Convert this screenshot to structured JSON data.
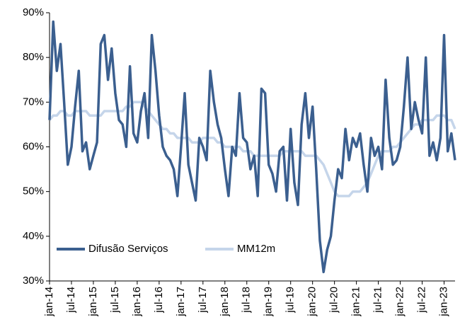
{
  "chart_data": {
    "type": "line",
    "categories": [
      "jan-14",
      null,
      null,
      null,
      null,
      null,
      "jul-14",
      null,
      null,
      null,
      null,
      null,
      "jan-15",
      null,
      null,
      null,
      null,
      null,
      "jul-15",
      null,
      null,
      null,
      null,
      null,
      "jan-16",
      null,
      null,
      null,
      null,
      null,
      "jul-16",
      null,
      null,
      null,
      null,
      null,
      "jan-17",
      null,
      null,
      null,
      null,
      null,
      "jul-17",
      null,
      null,
      null,
      null,
      null,
      "jan-18",
      null,
      null,
      null,
      null,
      null,
      "jul-18",
      null,
      null,
      null,
      null,
      null,
      "jan-19",
      null,
      null,
      null,
      null,
      null,
      "jul-19",
      null,
      null,
      null,
      null,
      null,
      "jan-20",
      null,
      null,
      null,
      null,
      null,
      "jul-20",
      null,
      null,
      null,
      null,
      null,
      "jan-21",
      null,
      null,
      null,
      null,
      null,
      "jul-21",
      null,
      null,
      null,
      null,
      null,
      "jan-22",
      null,
      null,
      null,
      null,
      null,
      "jul-22",
      null,
      null,
      null,
      null,
      null,
      "jan-23",
      null,
      null,
      null
    ],
    "series": [
      {
        "name": "Difusão Serviços",
        "color": "#3b5f8f",
        "values": [
          66,
          88,
          77,
          83,
          70,
          56,
          60,
          69,
          77,
          59,
          61,
          55,
          58,
          61,
          83,
          85,
          75,
          82,
          72,
          66,
          65,
          60,
          78,
          63,
          61,
          68,
          72,
          62,
          85,
          77,
          67,
          60,
          58,
          57,
          55,
          49,
          60,
          72,
          56,
          52,
          48,
          62,
          60,
          57,
          77,
          70,
          65,
          62,
          55,
          49,
          60,
          58,
          72,
          62,
          61,
          55,
          58,
          49,
          73,
          72,
          56,
          54,
          50,
          59,
          60,
          48,
          64,
          52,
          47,
          65,
          72,
          62,
          69,
          55,
          39,
          32,
          37,
          40,
          48,
          55,
          53,
          64,
          57,
          62,
          60,
          63,
          56,
          50,
          62,
          58,
          60,
          55,
          75,
          62,
          56,
          57,
          60,
          69,
          80,
          64,
          70,
          66,
          63,
          80,
          58,
          61,
          57,
          62,
          85,
          59,
          63,
          57
        ]
      },
      {
        "name": "MM12m",
        "color": "#c5d5ea",
        "values": [
          66,
          67,
          67,
          68,
          68,
          67,
          67,
          68,
          68,
          68,
          68,
          67,
          67,
          67,
          67,
          68,
          68,
          68,
          68,
          68,
          68,
          69,
          69,
          70,
          70,
          70,
          69,
          68,
          67,
          66,
          65,
          64,
          64,
          63,
          63,
          62,
          62,
          62,
          62,
          61,
          61,
          61,
          62,
          62,
          62,
          62,
          61,
          61,
          60,
          60,
          60,
          60,
          60,
          59,
          59,
          59,
          58,
          58,
          58,
          58,
          58,
          58,
          58,
          58,
          59,
          59,
          59,
          59,
          59,
          59,
          58,
          58,
          58,
          58,
          57,
          56,
          54,
          52,
          50,
          49,
          49,
          49,
          49,
          50,
          50,
          50,
          51,
          52,
          54,
          56,
          58,
          59,
          59,
          59,
          60,
          60,
          61,
          62,
          63,
          64,
          65,
          65,
          66,
          66,
          66,
          66,
          67,
          67,
          67,
          66,
          66,
          64
        ]
      }
    ],
    "ylim": [
      30,
      90
    ],
    "yticks": [
      {
        "value": 30,
        "label": "30%"
      },
      {
        "value": 40,
        "label": "40%"
      },
      {
        "value": 50,
        "label": "50%"
      },
      {
        "value": 60,
        "label": "60%"
      },
      {
        "value": 70,
        "label": "70%"
      },
      {
        "value": 80,
        "label": "80%"
      },
      {
        "value": 90,
        "label": "90%"
      }
    ],
    "grid": false,
    "legend": "lower left"
  }
}
